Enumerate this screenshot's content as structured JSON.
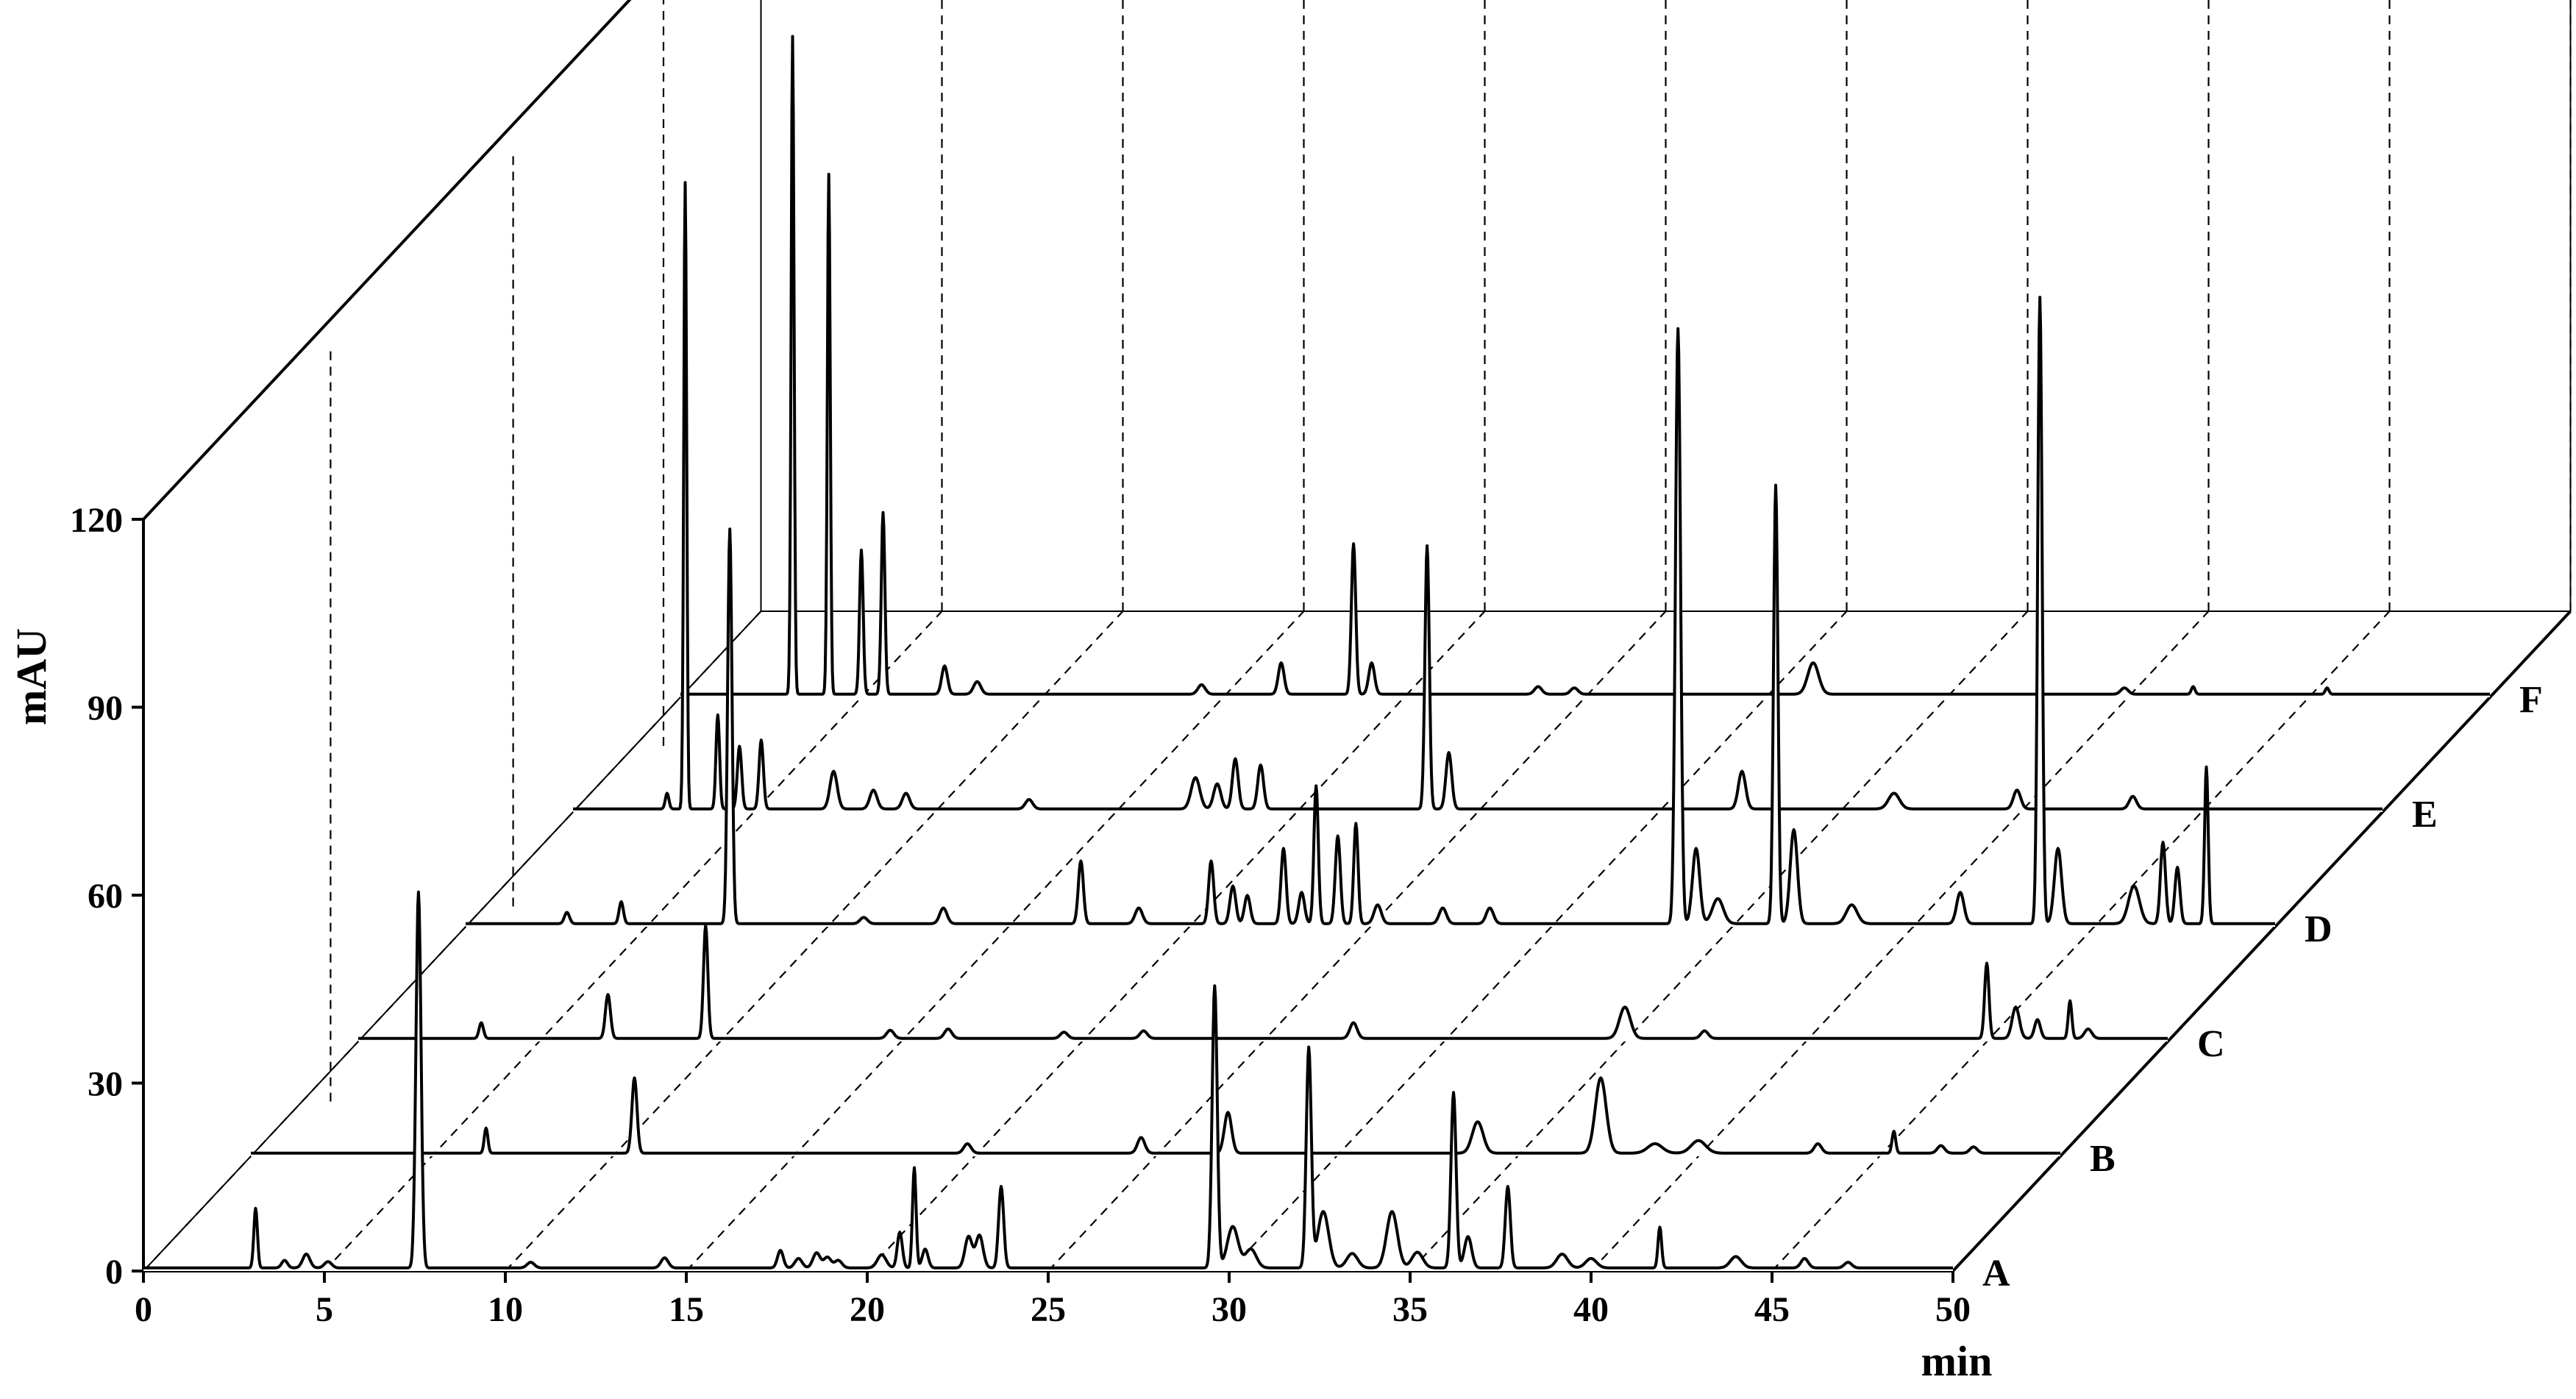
{
  "chart_data": {
    "type": "line",
    "style": "3d-waterfall",
    "title": "",
    "xlabel": "min",
    "ylabel": "mAU",
    "xlim": [
      0,
      50
    ],
    "ylim": [
      0,
      120
    ],
    "x_ticks": [
      "0",
      "5",
      "10",
      "15",
      "20",
      "25",
      "30",
      "35",
      "40",
      "45",
      "50"
    ],
    "y_ticks": [
      "0",
      "30",
      "60",
      "90",
      "120"
    ],
    "grid": "dashed",
    "color": "#000000",
    "series": [
      {
        "name": "A",
        "baseline": 0.5,
        "peaks": [
          [
            3.1,
            9.5,
            0.05
          ],
          [
            3.9,
            1.2,
            0.08
          ],
          [
            4.5,
            2.2,
            0.1
          ],
          [
            5.1,
            1.0,
            0.1
          ],
          [
            7.6,
            60.0,
            0.07
          ],
          [
            10.7,
            0.9,
            0.1
          ],
          [
            14.4,
            1.6,
            0.1
          ],
          [
            17.6,
            2.8,
            0.08
          ],
          [
            18.1,
            1.5,
            0.1
          ],
          [
            18.6,
            2.4,
            0.1
          ],
          [
            18.9,
            1.7,
            0.1
          ],
          [
            19.2,
            1.2,
            0.1
          ],
          [
            20.4,
            2.1,
            0.12
          ],
          [
            20.9,
            5.7,
            0.07
          ],
          [
            21.3,
            16.0,
            0.05
          ],
          [
            21.6,
            3.0,
            0.08
          ],
          [
            22.8,
            5.0,
            0.1
          ],
          [
            23.1,
            5.2,
            0.1
          ],
          [
            23.7,
            13.0,
            0.07
          ],
          [
            29.6,
            45.0,
            0.07
          ],
          [
            30.1,
            6.6,
            0.15
          ],
          [
            30.6,
            3.0,
            0.15
          ],
          [
            32.2,
            35.0,
            0.07
          ],
          [
            32.6,
            9.0,
            0.15
          ],
          [
            33.4,
            2.3,
            0.15
          ],
          [
            34.5,
            9.0,
            0.15
          ],
          [
            35.2,
            2.5,
            0.15
          ],
          [
            36.2,
            28.0,
            0.07
          ],
          [
            36.6,
            5.0,
            0.1
          ],
          [
            37.7,
            13.0,
            0.07
          ],
          [
            39.2,
            2.2,
            0.15
          ],
          [
            40.0,
            1.5,
            0.15
          ],
          [
            41.9,
            6.5,
            0.05
          ],
          [
            44.0,
            1.8,
            0.15
          ],
          [
            45.9,
            1.5,
            0.1
          ],
          [
            47.1,
            0.9,
            0.1
          ]
        ]
      },
      {
        "name": "B",
        "baseline": 0.5,
        "peaks": [
          [
            6.5,
            4.0,
            0.05
          ],
          [
            10.6,
            12.0,
            0.07
          ],
          [
            19.8,
            1.5,
            0.1
          ],
          [
            24.6,
            2.5,
            0.1
          ],
          [
            27.0,
            6.5,
            0.1
          ],
          [
            33.9,
            5.0,
            0.15
          ],
          [
            37.3,
            12.0,
            0.15
          ],
          [
            38.8,
            1.5,
            0.2
          ],
          [
            40.0,
            2.0,
            0.2
          ],
          [
            43.3,
            1.5,
            0.1
          ],
          [
            45.4,
            3.5,
            0.05
          ],
          [
            46.7,
            1.2,
            0.1
          ],
          [
            47.6,
            1.0,
            0.1
          ]
        ]
      },
      {
        "name": "C",
        "baseline": 0.5,
        "peaks": [
          [
            3.4,
            2.5,
            0.06
          ],
          [
            6.9,
            7.0,
            0.07
          ],
          [
            9.6,
            18.0,
            0.06
          ],
          [
            14.7,
            1.3,
            0.1
          ],
          [
            16.3,
            1.5,
            0.1
          ],
          [
            19.5,
            1.0,
            0.1
          ],
          [
            21.7,
            1.2,
            0.1
          ],
          [
            27.5,
            2.5,
            0.1
          ],
          [
            35.0,
            5.0,
            0.15
          ],
          [
            37.2,
            1.2,
            0.1
          ],
          [
            45.0,
            12.0,
            0.06
          ],
          [
            45.8,
            5.0,
            0.1
          ],
          [
            46.4,
            3.0,
            0.08
          ],
          [
            47.3,
            6.0,
            0.05
          ],
          [
            47.8,
            1.5,
            0.1
          ]
        ]
      },
      {
        "name": "D",
        "baseline": 0.5,
        "peaks": [
          [
            2.8,
            1.8,
            0.07
          ],
          [
            4.3,
            3.5,
            0.06
          ],
          [
            7.3,
            63.0,
            0.06
          ],
          [
            11.0,
            1.0,
            0.1
          ],
          [
            13.2,
            2.5,
            0.1
          ],
          [
            17.0,
            10.0,
            0.07
          ],
          [
            18.6,
            2.5,
            0.1
          ],
          [
            20.6,
            10.0,
            0.07
          ],
          [
            21.2,
            6.0,
            0.08
          ],
          [
            21.6,
            4.5,
            0.08
          ],
          [
            22.6,
            12.0,
            0.07
          ],
          [
            23.1,
            5.0,
            0.08
          ],
          [
            23.5,
            22.0,
            0.06
          ],
          [
            24.1,
            14.0,
            0.07
          ],
          [
            24.6,
            16.0,
            0.06
          ],
          [
            25.2,
            3.0,
            0.1
          ],
          [
            27.0,
            2.5,
            0.1
          ],
          [
            28.3,
            2.5,
            0.1
          ],
          [
            33.5,
            95.0,
            0.07
          ],
          [
            34.0,
            12.0,
            0.1
          ],
          [
            34.6,
            4.0,
            0.15
          ],
          [
            36.2,
            70.0,
            0.06
          ],
          [
            36.7,
            15.0,
            0.1
          ],
          [
            38.3,
            3.0,
            0.15
          ],
          [
            41.3,
            5.0,
            0.1
          ],
          [
            43.5,
            100.0,
            0.06
          ],
          [
            44.0,
            12.0,
            0.1
          ],
          [
            46.1,
            6.0,
            0.15
          ],
          [
            46.9,
            13.0,
            0.07
          ],
          [
            47.3,
            9.0,
            0.07
          ],
          [
            48.1,
            25.0,
            0.05
          ]
        ]
      },
      {
        "name": "E",
        "baseline": 0.5,
        "peaks": [
          [
            2.6,
            2.5,
            0.05
          ],
          [
            3.1,
            100.0,
            0.04
          ],
          [
            4.0,
            15.0,
            0.05
          ],
          [
            4.6,
            10.0,
            0.06
          ],
          [
            5.2,
            11.0,
            0.06
          ],
          [
            7.2,
            6.0,
            0.1
          ],
          [
            8.3,
            3.0,
            0.1
          ],
          [
            9.2,
            2.5,
            0.1
          ],
          [
            12.6,
            1.5,
            0.1
          ],
          [
            17.2,
            5.0,
            0.12
          ],
          [
            17.8,
            4.0,
            0.1
          ],
          [
            18.3,
            8.0,
            0.08
          ],
          [
            19.0,
            7.0,
            0.08
          ],
          [
            23.6,
            42.0,
            0.06
          ],
          [
            24.2,
            9.0,
            0.08
          ],
          [
            32.3,
            6.0,
            0.1
          ],
          [
            36.5,
            2.5,
            0.15
          ],
          [
            39.9,
            3.0,
            0.1
          ],
          [
            43.1,
            2.0,
            0.1
          ]
        ]
      },
      {
        "name": "F",
        "baseline": 0.5,
        "peaks": [
          [
            3.1,
            105.0,
            0.04
          ],
          [
            4.1,
            83.0,
            0.04
          ],
          [
            5.0,
            23.0,
            0.05
          ],
          [
            5.6,
            29.0,
            0.05
          ],
          [
            7.3,
            4.5,
            0.08
          ],
          [
            8.2,
            2.0,
            0.1
          ],
          [
            14.4,
            1.5,
            0.1
          ],
          [
            16.6,
            5.0,
            0.08
          ],
          [
            18.6,
            24.0,
            0.06
          ],
          [
            19.1,
            5.0,
            0.08
          ],
          [
            23.7,
            1.2,
            0.1
          ],
          [
            24.7,
            1.0,
            0.1
          ],
          [
            31.3,
            5.0,
            0.15
          ],
          [
            39.9,
            1.0,
            0.1
          ],
          [
            41.8,
            1.2,
            0.05
          ],
          [
            45.5,
            1.0,
            0.05
          ]
        ]
      }
    ]
  }
}
